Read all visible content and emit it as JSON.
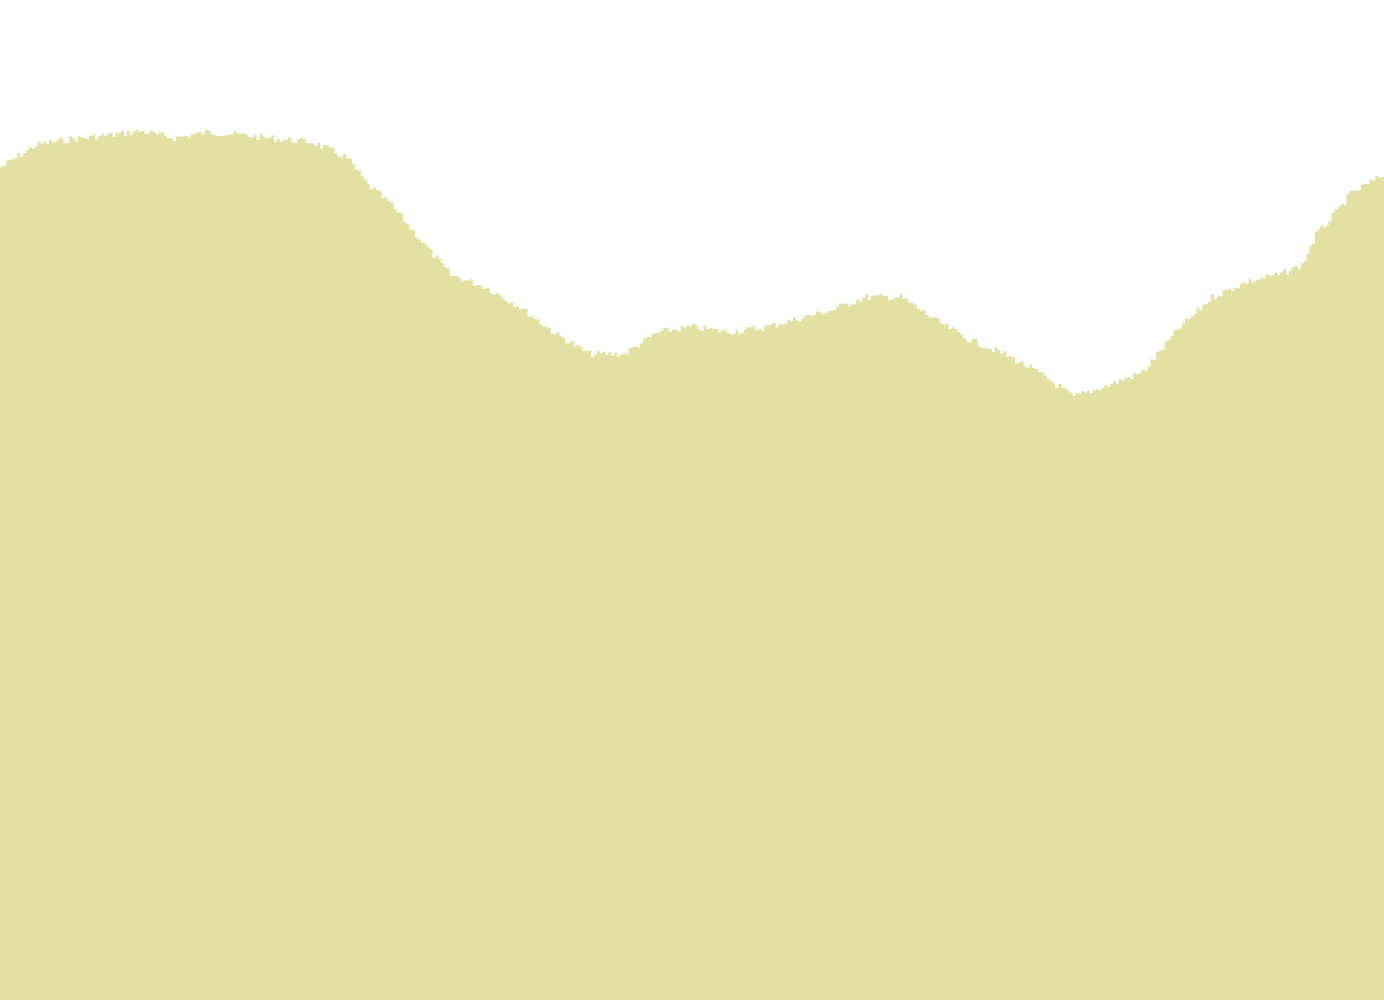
{
  "chart_data": {
    "type": "area",
    "title": "",
    "xlabel": "",
    "ylabel": "",
    "grid": false,
    "legend": "none",
    "fill_color": "#e3e0a1",
    "background_color": "#ffffff",
    "xlim": [
      0,
      100
    ],
    "ylim": [
      0,
      100
    ],
    "x": [
      0,
      2.5,
      5,
      7.5,
      10,
      12.5,
      15,
      17.5,
      20,
      22.5,
      25,
      26.5,
      28,
      30,
      32.5,
      35,
      37.5,
      40,
      42.5,
      45,
      47.5,
      50,
      52.5,
      55,
      57.5,
      60,
      62.5,
      65,
      67.5,
      70,
      72.5,
      75,
      77.5,
      80,
      82.5,
      85,
      87.5,
      90,
      92.5,
      94,
      95,
      96,
      97.5,
      100
    ],
    "y": [
      83.3,
      85.5,
      86.1,
      86.4,
      86.9,
      86.2,
      86.8,
      86.5,
      86.1,
      85.8,
      84.2,
      81.5,
      79.8,
      76.5,
      72.5,
      71.3,
      69.3,
      66.7,
      64.6,
      64.6,
      66.8,
      67.3,
      66.8,
      67.2,
      68.1,
      69.0,
      70.3,
      70.3,
      68.0,
      66.0,
      64.6,
      62.7,
      60.3,
      61.5,
      62.8,
      67.0,
      70.3,
      71.8,
      72.6,
      73.5,
      76.5,
      78.0,
      80.6,
      82.6
    ]
  }
}
